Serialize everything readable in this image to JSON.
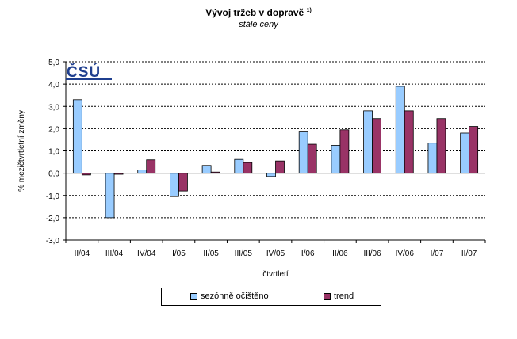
{
  "title_main": "Vývoj tržeb v dopravě",
  "title_footnote": "1)",
  "subtitle": "stálé ceny",
  "logo_text": "ČSÚ",
  "colors": {
    "seasonal": "#99CCFF",
    "trend": "#993366"
  },
  "chart_data": {
    "type": "bar",
    "categories": [
      "II/04",
      "III/04",
      "IV/04",
      "I/05",
      "II/05",
      "III/05",
      "IV/05",
      "I/06",
      "II/06",
      "III/06",
      "IV/06",
      "I/07",
      "II/07"
    ],
    "series": [
      {
        "name": "sezónně očištěno",
        "values": [
          3.3,
          -2.0,
          0.15,
          -1.05,
          0.35,
          0.62,
          -0.15,
          1.85,
          1.25,
          2.8,
          3.9,
          1.35,
          1.8
        ]
      },
      {
        "name": "trend",
        "values": [
          -0.08,
          -0.05,
          0.6,
          -0.8,
          0.05,
          0.48,
          0.55,
          1.3,
          1.95,
          2.45,
          2.8,
          2.45,
          2.1
        ]
      }
    ],
    "xlabel": "čtvrtletí",
    "ylabel": "% mezičtvrtletní změny",
    "ylim": [
      -3.0,
      5.0
    ],
    "yticks": [
      "5,0",
      "4,0",
      "3,0",
      "2,0",
      "1,0",
      "0,0",
      "-1,0",
      "-2,0",
      "-3,0"
    ],
    "ytick_values": [
      5,
      4,
      3,
      2,
      1,
      0,
      -1,
      -2,
      -3
    ],
    "grid": true,
    "legend": "bottom"
  }
}
